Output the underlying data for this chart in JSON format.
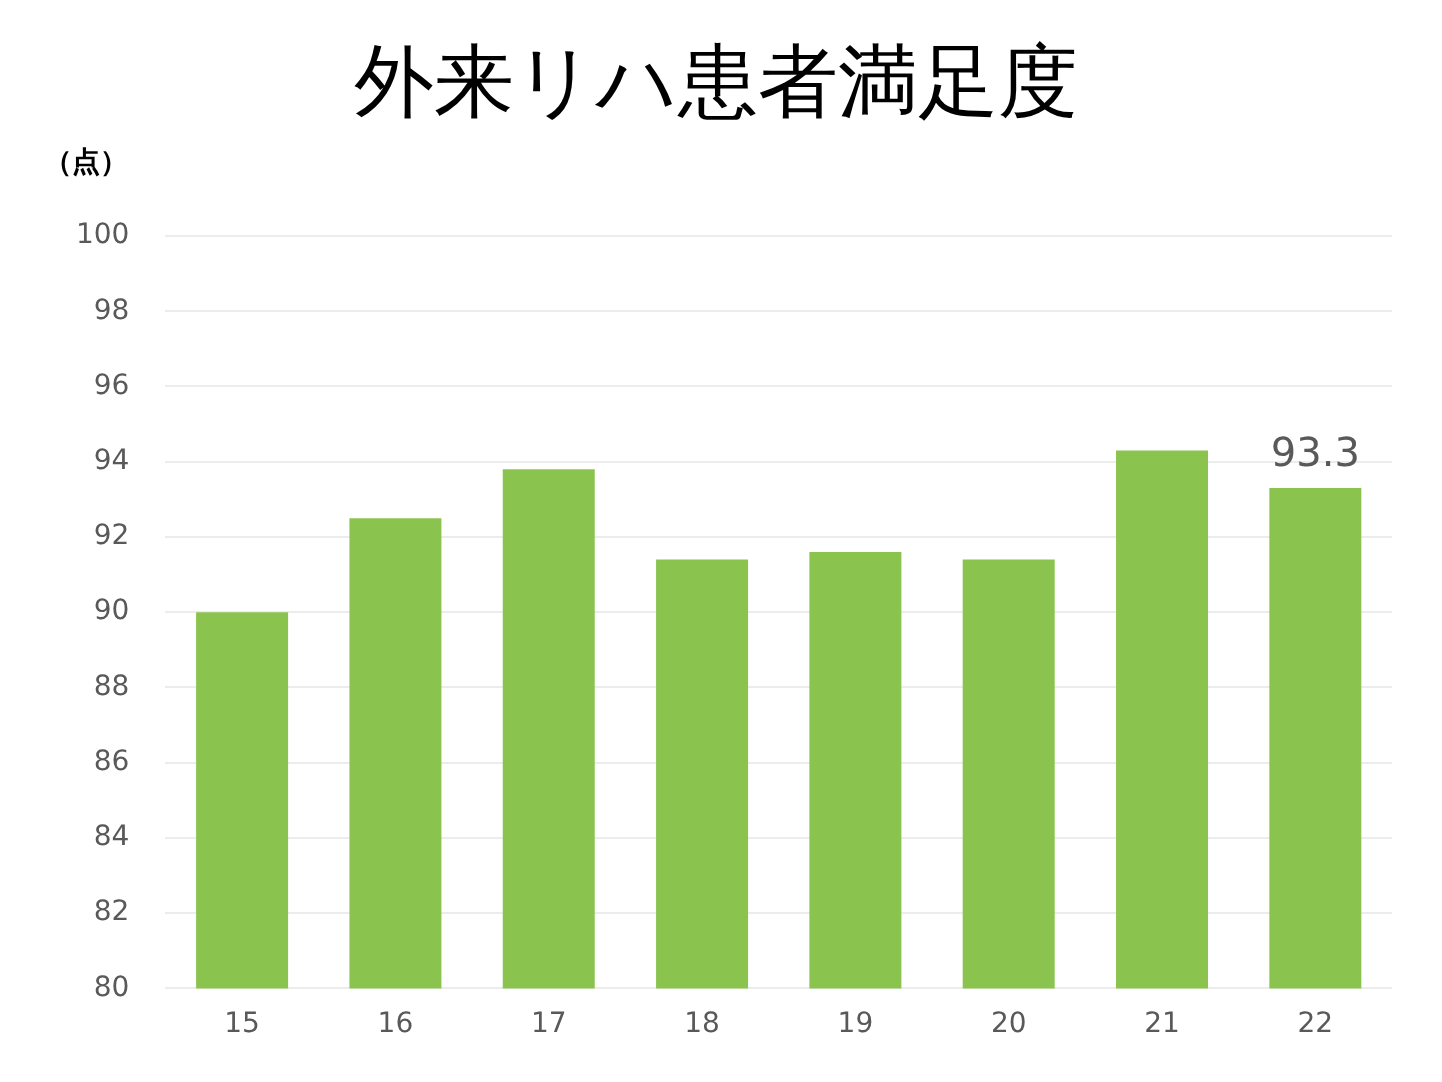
{
  "chart_data": {
    "type": "bar",
    "title": "外来リハ患者満足度",
    "ylabel": "（点）",
    "categories": [
      "15",
      "16",
      "17",
      "18",
      "19",
      "20",
      "21",
      "22"
    ],
    "values": [
      90.0,
      92.5,
      93.8,
      91.4,
      91.6,
      91.4,
      94.3,
      93.3
    ],
    "value_labels": [
      null,
      null,
      null,
      null,
      null,
      null,
      null,
      "93.3"
    ],
    "color": "#8bc34f",
    "ylim": [
      80,
      100
    ],
    "yticks": [
      80,
      82,
      84,
      86,
      88,
      90,
      92,
      94,
      96,
      98,
      100
    ],
    "grid": "y",
    "legend": false
  }
}
